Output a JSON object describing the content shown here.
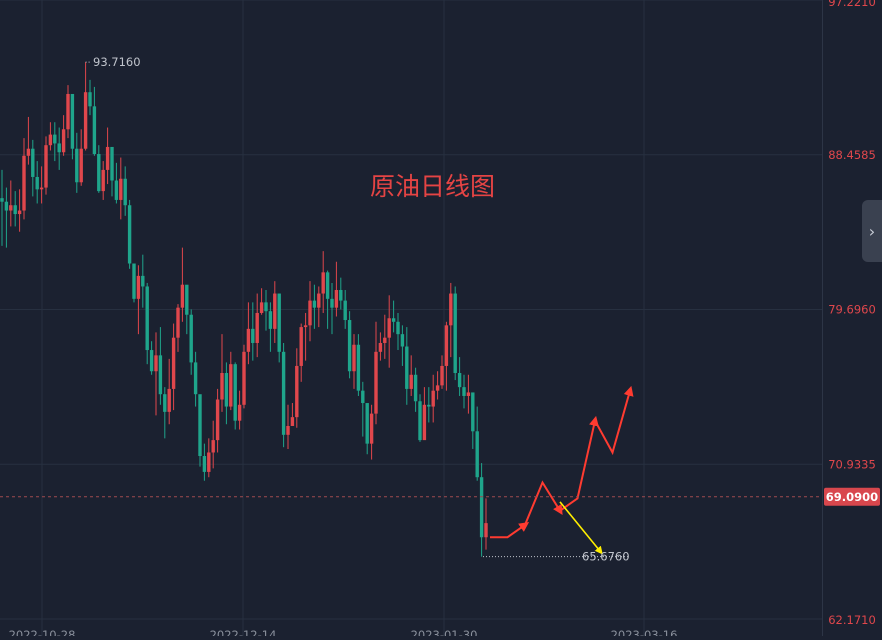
{
  "chart_data": {
    "type": "candlestick",
    "title": "原油日线图",
    "y_ticks": [
      "97.2210",
      "88.4585",
      "79.6960",
      "70.9335",
      "62.1710"
    ],
    "ylim": [
      62.171,
      97.221
    ],
    "current_price": "69.0900",
    "annotations": {
      "high": "93.7160",
      "low": "65.6760"
    },
    "x_ticks": [
      "2022-10-28",
      "2022-12-14",
      "2023-01-30",
      "2023-03-16"
    ],
    "colors": {
      "up": "#e0474c",
      "down": "#1fa58b",
      "forecast_up": "#ff3b30",
      "forecast_down": "#ffee00"
    },
    "candles": [
      [
        86.0,
        85.8,
        87.6,
        83.3
      ],
      [
        85.8,
        85.3,
        86.6,
        83.2
      ],
      [
        85.3,
        85.6,
        87.0,
        84.4
      ],
      [
        85.6,
        85.1,
        86.4,
        84.4
      ],
      [
        85.1,
        85.3,
        86.5,
        84.1
      ],
      [
        85.3,
        88.4,
        89.4,
        84.8
      ],
      [
        88.4,
        88.8,
        90.6,
        87.9
      ],
      [
        88.8,
        87.2,
        89.3,
        86.1
      ],
      [
        87.2,
        86.5,
        88.1,
        85.7
      ],
      [
        86.5,
        86.6,
        87.8,
        85.7
      ],
      [
        86.6,
        89.0,
        89.5,
        86.2
      ],
      [
        89.0,
        89.6,
        90.3,
        88.7
      ],
      [
        89.6,
        89.1,
        90.3,
        88.1
      ],
      [
        89.1,
        88.6,
        90.0,
        87.6
      ],
      [
        88.6,
        89.9,
        90.7,
        88.4
      ],
      [
        89.9,
        91.9,
        92.4,
        89.4
      ],
      [
        91.9,
        88.8,
        91.6,
        88.2
      ],
      [
        88.8,
        86.9,
        89.7,
        86.3
      ],
      [
        86.9,
        88.8,
        89.9,
        86.7
      ],
      [
        88.8,
        92.0,
        93.7,
        88.7
      ],
      [
        92.0,
        91.2,
        92.7,
        90.7
      ],
      [
        91.2,
        88.5,
        92.3,
        88.4
      ],
      [
        88.5,
        86.4,
        89.0,
        86.3
      ],
      [
        86.4,
        87.6,
        88.1,
        85.9
      ],
      [
        87.6,
        88.9,
        90.0,
        86.8
      ],
      [
        88.9,
        87.0,
        88.8,
        86.1
      ],
      [
        87.0,
        85.9,
        88.0,
        85.7
      ],
      [
        85.9,
        87.1,
        88.3,
        84.8
      ],
      [
        87.1,
        85.6,
        87.8,
        85.0
      ],
      [
        85.6,
        82.3,
        85.9,
        82.0
      ],
      [
        82.3,
        80.3,
        82.2,
        80.1
      ],
      [
        80.3,
        81.6,
        82.2,
        78.3
      ],
      [
        81.6,
        81.0,
        82.8,
        79.8
      ],
      [
        81.0,
        77.4,
        81.2,
        76.6
      ],
      [
        77.4,
        76.2,
        77.9,
        76.0
      ],
      [
        76.2,
        77.1,
        78.4,
        73.7
      ],
      [
        77.1,
        74.9,
        78.7,
        74.3
      ],
      [
        74.9,
        73.9,
        75.3,
        72.4
      ],
      [
        73.9,
        75.2,
        76.9,
        73.2
      ],
      [
        75.2,
        78.1,
        78.9,
        74.0
      ],
      [
        78.1,
        79.8,
        80.0,
        77.3
      ],
      [
        79.8,
        81.1,
        83.2,
        79.0
      ],
      [
        81.1,
        79.4,
        80.8,
        78.3
      ],
      [
        79.4,
        76.7,
        79.7,
        76.0
      ],
      [
        76.7,
        74.9,
        77.3,
        74.2
      ],
      [
        74.9,
        71.4,
        74.5,
        70.8
      ],
      [
        71.4,
        70.5,
        72.1,
        70.0
      ],
      [
        70.5,
        71.6,
        72.4,
        70.2
      ],
      [
        71.6,
        72.3,
        73.4,
        70.7
      ],
      [
        72.3,
        74.6,
        75.2,
        71.6
      ],
      [
        74.6,
        76.1,
        78.3,
        73.9
      ],
      [
        76.1,
        74.2,
        76.7,
        73.2
      ],
      [
        74.2,
        76.6,
        77.3,
        74.0
      ],
      [
        76.6,
        73.4,
        76.7,
        72.9
      ],
      [
        73.4,
        74.3,
        75.1,
        72.9
      ],
      [
        74.3,
        77.3,
        77.7,
        74.1
      ],
      [
        77.3,
        78.6,
        80.1,
        76.6
      ],
      [
        78.6,
        77.8,
        80.1,
        76.8
      ],
      [
        77.8,
        79.5,
        80.6,
        77.0
      ],
      [
        79.5,
        80.1,
        80.9,
        79.4
      ],
      [
        80.1,
        79.6,
        80.8,
        78.5
      ],
      [
        79.6,
        78.6,
        80.1,
        77.3
      ],
      [
        78.6,
        80.6,
        81.3,
        77.8
      ],
      [
        80.6,
        77.3,
        80.6,
        76.7
      ],
      [
        77.3,
        72.6,
        77.8,
        71.9
      ],
      [
        72.6,
        73.1,
        74.3,
        71.8
      ],
      [
        73.1,
        73.6,
        74.4,
        73.3
      ],
      [
        73.6,
        76.5,
        77.5,
        73.0
      ],
      [
        76.5,
        78.7,
        78.9,
        75.6
      ],
      [
        78.7,
        78.8,
        79.5,
        76.8
      ],
      [
        78.8,
        80.2,
        81.3,
        77.9
      ],
      [
        80.2,
        79.8,
        81.1,
        78.6
      ],
      [
        79.8,
        80.6,
        81.0,
        78.7
      ],
      [
        80.6,
        81.8,
        83.0,
        79.5
      ],
      [
        81.8,
        80.3,
        81.9,
        78.6
      ],
      [
        80.3,
        79.8,
        81.2,
        78.3
      ],
      [
        79.8,
        80.8,
        82.4,
        79.3
      ],
      [
        80.8,
        80.2,
        81.5,
        79.7
      ],
      [
        80.2,
        79.1,
        80.8,
        78.6
      ],
      [
        79.1,
        76.2,
        79.6,
        75.8
      ],
      [
        76.2,
        77.7,
        78.3,
        75.2
      ],
      [
        77.7,
        75.1,
        78.3,
        74.8
      ],
      [
        75.1,
        74.4,
        75.6,
        72.5
      ],
      [
        74.4,
        72.1,
        74.3,
        71.5
      ],
      [
        72.1,
        73.8,
        74.3,
        71.2
      ],
      [
        73.8,
        77.3,
        79.0,
        73.2
      ],
      [
        77.3,
        77.8,
        78.4,
        76.8
      ],
      [
        77.8,
        78.1,
        79.4,
        76.9
      ],
      [
        78.1,
        79.2,
        80.5,
        76.4
      ],
      [
        79.2,
        79.0,
        80.2,
        78.4
      ],
      [
        79.0,
        78.3,
        79.5,
        77.4
      ],
      [
        78.3,
        77.6,
        78.8,
        76.5
      ],
      [
        77.6,
        75.2,
        78.7,
        74.3
      ],
      [
        75.2,
        76.0,
        77.1,
        74.8
      ],
      [
        76.0,
        74.5,
        76.4,
        73.9
      ],
      [
        74.5,
        72.3,
        74.9,
        72.2
      ],
      [
        72.3,
        74.3,
        75.3,
        72.5
      ],
      [
        74.3,
        74.2,
        75.3,
        73.3
      ],
      [
        74.2,
        75.1,
        76.0,
        73.3
      ],
      [
        75.1,
        75.4,
        76.2,
        74.6
      ],
      [
        75.4,
        76.5,
        77.1,
        75.2
      ],
      [
        76.5,
        78.8,
        79.0,
        75.1
      ],
      [
        78.8,
        80.6,
        81.2,
        77.0
      ],
      [
        80.6,
        76.1,
        81.0,
        75.7
      ],
      [
        76.1,
        75.3,
        77.0,
        74.8
      ],
      [
        75.3,
        74.8,
        76.0,
        74.1
      ],
      [
        74.8,
        75.0,
        76.0,
        73.8
      ],
      [
        75.0,
        72.8,
        74.8,
        71.8
      ],
      [
        72.8,
        70.2,
        74.2,
        70.0
      ],
      [
        70.2,
        66.8,
        71.0,
        65.7
      ],
      [
        66.8,
        67.6,
        69.0,
        66.1
      ]
    ],
    "forecast_red": [
      [
        66.8,
        67.5
      ],
      [
        69.9,
        68.3
      ],
      [
        69.0,
        73.4
      ],
      [
        71.6,
        75.1
      ]
    ],
    "forecast_yellow": [
      [
        68.8,
        66.0
      ]
    ]
  }
}
